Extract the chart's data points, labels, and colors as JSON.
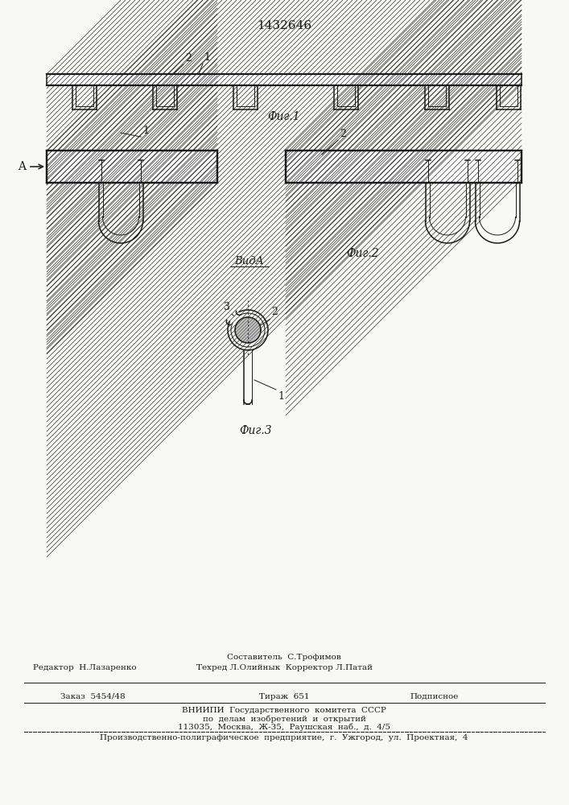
{
  "patent_number": "1432646",
  "fig1_label": "Фиг.1",
  "fig2_label": "Фиг.2",
  "fig3_label": "Фиг.3",
  "vid_label": "ВидА",
  "background_color": "#f8f8f4",
  "line_color": "#1a1a1a",
  "footer_line1_left": "Редактор  Н.Лазаренко",
  "footer_line1_center": "Составитель  С.Трофимов",
  "footer_line2_center": "Техред Л.Олийнык  Корректор Л.Патай",
  "footer_order": "Заказ  5454/48",
  "footer_tirazh": "Тираж  651",
  "footer_podpisnoe": "Подписное",
  "footer_vniipи": "ВНИИПИ  Государственного  комитета  СССР",
  "footer_po_delam": "по  делам  изобретений  и  открытий",
  "footer_address": "113035,  Москва,  Ж-35,  Раушская  наб.,  д.  4/5",
  "footer_proizv": "Производственно-полиграфическое  предприятие,  г.  Ужгород,  ул.  Проектная,  4"
}
